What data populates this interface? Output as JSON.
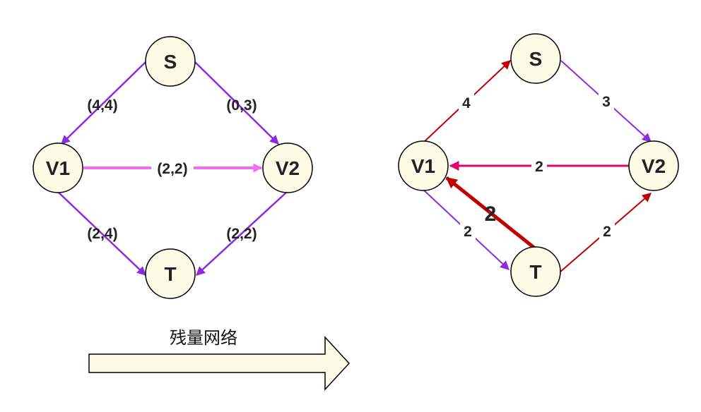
{
  "left_graph": {
    "nodes": {
      "s": "S",
      "v1": "V1",
      "v2": "V2",
      "t": "T"
    },
    "edges": {
      "s_v1": "(4,4)",
      "s_v2": "(0,3)",
      "v1_v2": "(2,2)",
      "v1_t": "(2,4)",
      "v2_t": "(2,2)"
    }
  },
  "right_graph": {
    "nodes": {
      "s": "S",
      "v1": "V1",
      "v2": "V2",
      "t": "T"
    },
    "edges": {
      "v1_s": "4",
      "s_v2": "3",
      "v2_v1": "2",
      "v1_t": "2",
      "t_v1": "2",
      "t_v2": "2"
    }
  },
  "caption": "残量网络",
  "colors": {
    "purple": "#8a2be2",
    "pink": "#f06ef0",
    "dark_red": "#c00000",
    "magenta_red": "#e0006e",
    "node_fill": "#fbfbe6"
  }
}
